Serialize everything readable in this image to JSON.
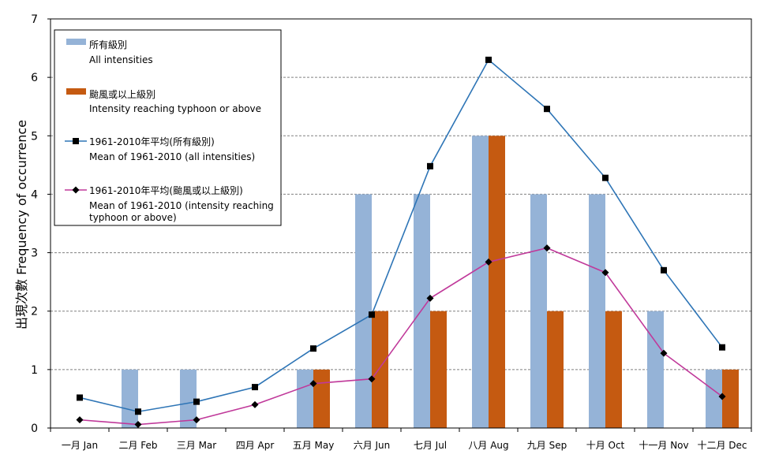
{
  "chart_data": {
    "type": "bar",
    "categories": [
      "一月 Jan",
      "二月 Feb",
      "三月 Mar",
      "四月 Apr",
      "五月 May",
      "六月 Jun",
      "七月 Jul",
      "八月 Aug",
      "九月 Sep",
      "十月 Oct",
      "十一月 Nov",
      "十二月 Dec"
    ],
    "ylabel": "出現次數  Frequency of occurrence",
    "ylim": [
      0,
      7
    ],
    "yticks": [
      0,
      1,
      2,
      3,
      4,
      5,
      6,
      7
    ],
    "grid": "horizontal dashed",
    "legend_position": "top-left",
    "series": [
      {
        "name_zh": "所有級別",
        "name_en": "All intensities",
        "kind": "bar",
        "color": "#95b3d7",
        "values": [
          0,
          1,
          1,
          0,
          1,
          4,
          4,
          5,
          4,
          4,
          2,
          1
        ]
      },
      {
        "name_zh": "颱風或以上級別",
        "name_en": "Intensity reaching typhoon or above",
        "kind": "bar",
        "color": "#c55a11",
        "values": [
          0,
          0,
          0,
          0,
          1,
          2,
          2,
          5,
          2,
          2,
          0,
          1
        ]
      },
      {
        "name_zh": "1961-2010年平均(所有級別)",
        "name_en": "Mean of 1961-2010  (all intensities)",
        "kind": "line",
        "marker": "square",
        "color": "#2e75b6",
        "values": [
          0.52,
          0.28,
          0.45,
          0.7,
          1.36,
          1.94,
          4.48,
          6.3,
          5.46,
          4.28,
          2.7,
          1.38
        ]
      },
      {
        "name_zh": "1961-2010年平均(颱風或以上級別)",
        "name_en": "Mean of 1961-2010  (intensity reaching",
        "name_en_2": "typhoon or above)",
        "kind": "line",
        "marker": "diamond",
        "color": "#c0399a",
        "values": [
          0.14,
          0.06,
          0.14,
          0.4,
          0.76,
          0.84,
          2.22,
          2.84,
          3.08,
          2.66,
          1.28,
          0.54
        ]
      }
    ]
  }
}
